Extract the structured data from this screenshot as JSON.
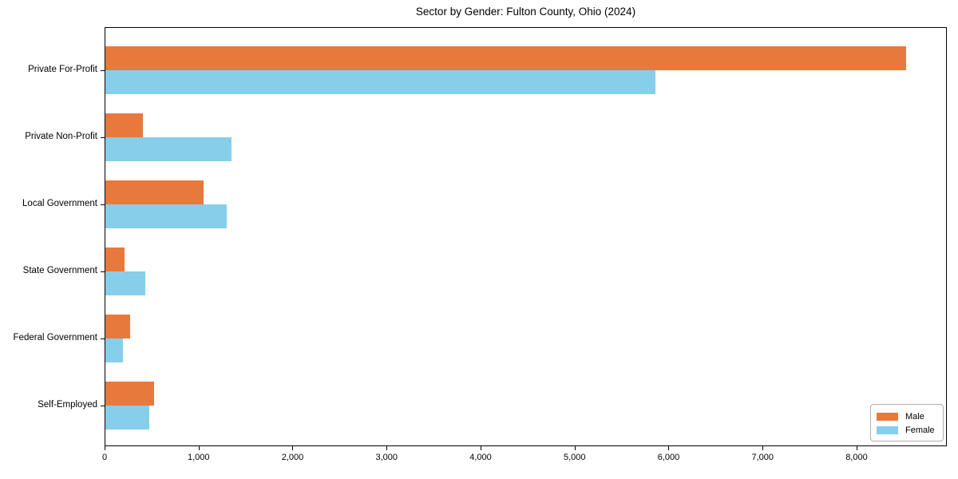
{
  "page": {
    "background": "#ffffff"
  },
  "chart_data": {
    "type": "bar",
    "orientation": "horizontal",
    "title": "Sector by Gender: Fulton County, Ohio (2024)",
    "categories": [
      "Private For-Profit",
      "Private Non-Profit",
      "Local Government",
      "State Government",
      "Federal Government",
      "Self-Employed"
    ],
    "series": [
      {
        "name": "Male",
        "color": "#e8793d",
        "values": [
          8530,
          410,
          1050,
          210,
          270,
          525
        ]
      },
      {
        "name": "Female",
        "color": "#87ceeb",
        "values": [
          5860,
          1350,
          1300,
          430,
          195,
          475
        ]
      }
    ],
    "xlim": [
      0,
      8960
    ],
    "xticks": [
      0,
      1000,
      2000,
      3000,
      4000,
      5000,
      6000,
      7000,
      8000
    ],
    "xtick_labels": [
      "0",
      "1,000",
      "2,000",
      "3,000",
      "4,000",
      "5,000",
      "6,000",
      "7,000",
      "8,000"
    ],
    "grid": false,
    "legend": {
      "position": "lower right"
    }
  }
}
